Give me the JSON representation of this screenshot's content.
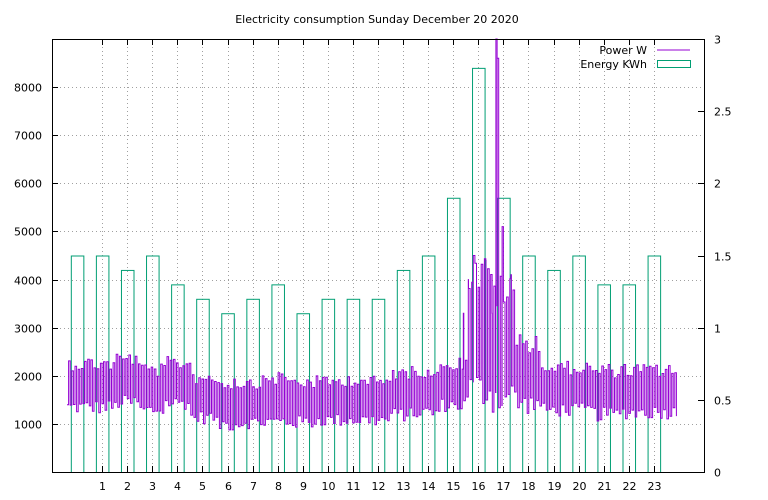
{
  "chart_data": {
    "type": "bar",
    "title": "Electricity consumption Sunday December 20 2020",
    "grid": true,
    "legend_position": "top-right",
    "x_range": [
      -1,
      25
    ],
    "x_ticks": [
      1,
      2,
      3,
      4,
      5,
      6,
      7,
      8,
      9,
      10,
      11,
      12,
      13,
      14,
      15,
      16,
      17,
      18,
      19,
      20,
      21,
      22,
      23
    ],
    "y_left_range": [
      0,
      9000
    ],
    "y_left_ticks": [
      1000,
      2000,
      3000,
      4000,
      5000,
      6000,
      7000,
      8000
    ],
    "y_right_range": [
      0,
      3
    ],
    "y_right_ticks": [
      "0",
      "0.5",
      "1",
      "1.5",
      "2",
      "2.5",
      "3"
    ],
    "series": [
      {
        "name": "Energy KWh",
        "type": "bar",
        "axis": "right",
        "color": "#009e73",
        "x": [
          0,
          1,
          2,
          3,
          4,
          5,
          6,
          7,
          8,
          9,
          10,
          11,
          12,
          13,
          14,
          15,
          16,
          17,
          18,
          19,
          20,
          21,
          22,
          23
        ],
        "values": [
          1.5,
          1.5,
          1.4,
          1.5,
          1.3,
          1.2,
          1.1,
          1.2,
          1.3,
          1.1,
          1.2,
          1.2,
          1.2,
          1.4,
          1.5,
          1.9,
          2.8,
          1.9,
          1.5,
          1.4,
          1.5,
          1.3,
          1.3,
          1.5
        ]
      },
      {
        "name": "Power W",
        "type": "line",
        "axis": "left",
        "color": "#9400d3",
        "hourly_low": [
          1200,
          1200,
          1300,
          1150,
          1300,
          1000,
          850,
          900,
          900,
          900,
          950,
          950,
          950,
          1050,
          1100,
          1250,
          1300,
          1200,
          1200,
          1150,
          1150,
          1050,
          1100,
          1100
        ],
        "hourly_high": [
          2400,
          2400,
          2500,
          2250,
          2400,
          2100,
          2000,
          2000,
          2100,
          2000,
          2000,
          2050,
          2000,
          2200,
          2250,
          2400,
          4500,
          4100,
          2900,
          2300,
          2300,
          2250,
          2250,
          2250
        ],
        "peaks": [
          {
            "x": 15.4,
            "y": 3300
          },
          {
            "x": 15.6,
            "y": 4000
          },
          {
            "x": 15.8,
            "y": 4500
          },
          {
            "x": 16.3,
            "y": 4400
          },
          {
            "x": 16.55,
            "y": 3300
          },
          {
            "x": 16.7,
            "y": 9000
          },
          {
            "x": 16.75,
            "y": 8600
          },
          {
            "x": 16.95,
            "y": 5100
          },
          {
            "x": 17.3,
            "y": 4100
          }
        ]
      }
    ]
  }
}
